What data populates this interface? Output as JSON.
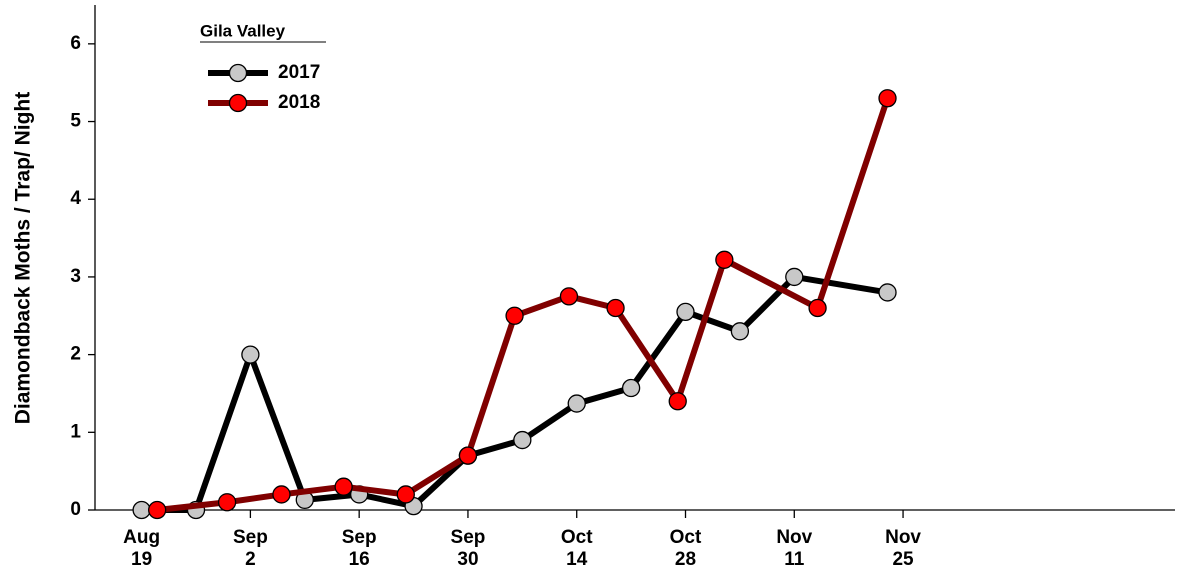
{
  "chart_data": {
    "type": "line",
    "y_label": "Diamondback Moths / Trap/ Night",
    "legend_title": "Gila Valley",
    "legend_position": "upper left",
    "xlim": [
      "Aug 13",
      "Dec 30"
    ],
    "xticks": [
      "Aug 19",
      "Sep 2",
      "Sep 16",
      "Sep 30",
      "Oct 14",
      "Oct 28",
      "Nov 11",
      "Nov 25"
    ],
    "ylim": [
      0,
      6.5
    ],
    "yticks": [
      0,
      1,
      2,
      3,
      4,
      5,
      6
    ],
    "series": [
      {
        "name": "2017",
        "color": "#000000",
        "marker_color": "#c8c8c8",
        "x": [
          "Aug 19",
          "Aug 26",
          "Sep 2",
          "Sep 9",
          "Sep 16",
          "Sep 23",
          "Sep 30",
          "Oct 7",
          "Oct 14",
          "Oct 21",
          "Oct 28",
          "Nov 4",
          "Nov 11",
          "Nov 23"
        ],
        "values": [
          0,
          0,
          2.0,
          0.13,
          0.2,
          0.05,
          0.7,
          0.9,
          1.37,
          1.57,
          2.55,
          2.3,
          3.0,
          2.8
        ]
      },
      {
        "name": "2018",
        "color": "#800000",
        "marker_color": "#ff0000",
        "x": [
          "Aug 21",
          "Aug 30",
          "Sep 6",
          "Sep 14",
          "Sep 22",
          "Sep 30",
          "Oct 6",
          "Oct 13",
          "Oct 19",
          "Oct 27",
          "Nov 2",
          "Nov 14",
          "Nov 23"
        ],
        "values": [
          0,
          0.1,
          0.2,
          0.3,
          0.2,
          0.7,
          2.5,
          2.75,
          2.6,
          1.4,
          3.22,
          2.6,
          5.3
        ]
      }
    ]
  }
}
